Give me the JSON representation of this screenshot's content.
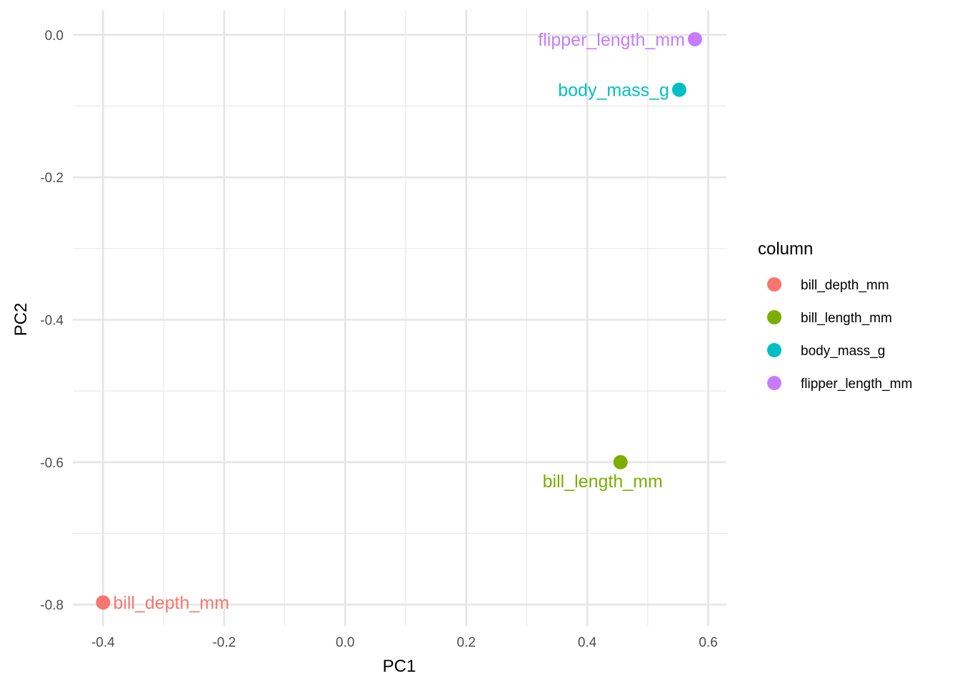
{
  "chart_data": {
    "type": "scatter",
    "xlabel": "PC1",
    "ylabel": "PC2",
    "xlim": [
      -0.45,
      0.63
    ],
    "ylim": [
      -0.83,
      0.035
    ],
    "x_ticks_major": [
      -0.4,
      -0.2,
      0.0,
      0.2,
      0.4,
      0.6
    ],
    "x_tick_labels": [
      "-0.4",
      "-0.2",
      "0.0",
      "0.2",
      "0.4",
      "0.6"
    ],
    "x_ticks_minor": [
      -0.3,
      -0.1,
      0.1,
      0.3,
      0.5
    ],
    "y_ticks_major": [
      0.0,
      -0.2,
      -0.4,
      -0.6,
      -0.8
    ],
    "y_tick_labels": [
      "0.0",
      "-0.2",
      "-0.4",
      "-0.6",
      "-0.8"
    ],
    "y_ticks_minor": [
      -0.1,
      -0.3,
      -0.5,
      -0.7
    ],
    "grid": true,
    "legend_placement": "right",
    "legend": {
      "title": "column",
      "entries": [
        {
          "label": "bill_depth_mm",
          "color": "#F8766D"
        },
        {
          "label": "bill_length_mm",
          "color": "#7CAE00"
        },
        {
          "label": "body_mass_g",
          "color": "#00BFC4"
        },
        {
          "label": "flipper_length_mm",
          "color": "#C77CFF"
        }
      ]
    },
    "points": [
      {
        "name": "bill_depth_mm",
        "x": -0.4,
        "y": -0.797,
        "color": "#F8766D",
        "label_side": "right"
      },
      {
        "name": "bill_length_mm",
        "x": 0.455,
        "y": -0.6,
        "color": "#7CAE00",
        "label_side": "below-left"
      },
      {
        "name": "body_mass_g",
        "x": 0.552,
        "y": -0.077,
        "color": "#00BFC4",
        "label_side": "left"
      },
      {
        "name": "flipper_length_mm",
        "x": 0.578,
        "y": -0.006,
        "color": "#C77CFF",
        "label_side": "left"
      }
    ]
  }
}
